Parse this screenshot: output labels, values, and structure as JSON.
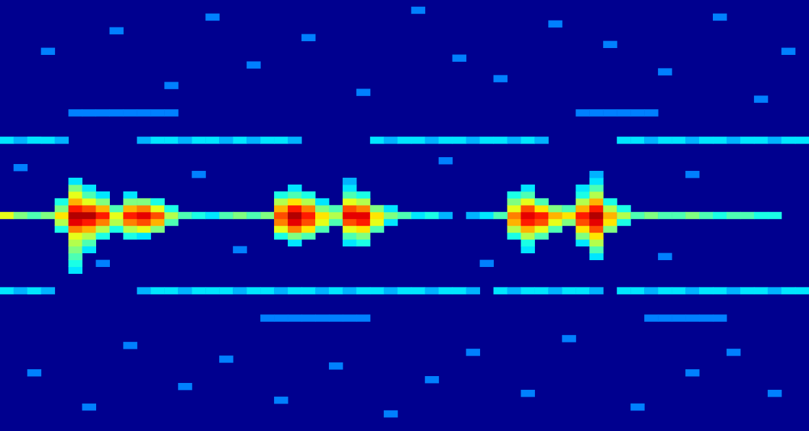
{
  "chart_data": {
    "type": "heatmap",
    "xlim": [
      0,
      58
    ],
    "ylim": [
      0,
      62
    ],
    "zlim": [
      0,
      1
    ],
    "tick_labels": false,
    "cells": [
      [
        4,
        29,
        0.4
      ],
      [
        4,
        30,
        0.55
      ],
      [
        4,
        31,
        0.65
      ],
      [
        4,
        32,
        0.5
      ],
      [
        4,
        33,
        0.4
      ],
      [
        5,
        23,
        0.35
      ],
      [
        5,
        24,
        0.4
      ],
      [
        5,
        25,
        0.45
      ],
      [
        5,
        26,
        0.5
      ],
      [
        5,
        27,
        0.55
      ],
      [
        5,
        28,
        0.6
      ],
      [
        5,
        29,
        0.75
      ],
      [
        5,
        30,
        0.9
      ],
      [
        5,
        31,
        0.95
      ],
      [
        5,
        32,
        0.85
      ],
      [
        5,
        33,
        0.7
      ],
      [
        5,
        34,
        0.6
      ],
      [
        5,
        35,
        0.5
      ],
      [
        5,
        36,
        0.35
      ],
      [
        6,
        26,
        0.35
      ],
      [
        6,
        27,
        0.45
      ],
      [
        6,
        28,
        0.55
      ],
      [
        6,
        29,
        0.7
      ],
      [
        6,
        30,
        0.85
      ],
      [
        6,
        31,
        0.95
      ],
      [
        6,
        32,
        0.8
      ],
      [
        6,
        33,
        0.6
      ],
      [
        6,
        34,
        0.45
      ],
      [
        6,
        35,
        0.35
      ],
      [
        7,
        28,
        0.4
      ],
      [
        7,
        29,
        0.55
      ],
      [
        7,
        30,
        0.75
      ],
      [
        7,
        31,
        0.85
      ],
      [
        7,
        32,
        0.7
      ],
      [
        7,
        33,
        0.5
      ],
      [
        7,
        34,
        0.35
      ],
      [
        8,
        29,
        0.4
      ],
      [
        8,
        30,
        0.55
      ],
      [
        8,
        31,
        0.6
      ],
      [
        8,
        32,
        0.45
      ],
      [
        9,
        28,
        0.4
      ],
      [
        9,
        29,
        0.55
      ],
      [
        9,
        30,
        0.75
      ],
      [
        9,
        31,
        0.85
      ],
      [
        9,
        32,
        0.7
      ],
      [
        9,
        33,
        0.5
      ],
      [
        9,
        34,
        0.35
      ],
      [
        10,
        28,
        0.35
      ],
      [
        10,
        29,
        0.6
      ],
      [
        10,
        30,
        0.8
      ],
      [
        10,
        31,
        0.9
      ],
      [
        10,
        32,
        0.75
      ],
      [
        10,
        33,
        0.5
      ],
      [
        11,
        29,
        0.5
      ],
      [
        11,
        30,
        0.7
      ],
      [
        11,
        31,
        0.8
      ],
      [
        11,
        32,
        0.6
      ],
      [
        11,
        33,
        0.4
      ],
      [
        12,
        30,
        0.45
      ],
      [
        12,
        31,
        0.55
      ],
      [
        12,
        32,
        0.4
      ],
      [
        13,
        31,
        0.45
      ],
      [
        19,
        31,
        0.5
      ],
      [
        20,
        28,
        0.4
      ],
      [
        20,
        29,
        0.6
      ],
      [
        20,
        30,
        0.75
      ],
      [
        20,
        31,
        0.8
      ],
      [
        20,
        32,
        0.7
      ],
      [
        20,
        33,
        0.55
      ],
      [
        20,
        34,
        0.4
      ],
      [
        21,
        27,
        0.35
      ],
      [
        21,
        28,
        0.5
      ],
      [
        21,
        29,
        0.75
      ],
      [
        21,
        30,
        0.9
      ],
      [
        21,
        31,
        0.95
      ],
      [
        21,
        32,
        0.85
      ],
      [
        21,
        33,
        0.65
      ],
      [
        21,
        34,
        0.45
      ],
      [
        21,
        35,
        0.35
      ],
      [
        22,
        28,
        0.45
      ],
      [
        22,
        29,
        0.65
      ],
      [
        22,
        30,
        0.8
      ],
      [
        22,
        31,
        0.85
      ],
      [
        22,
        32,
        0.75
      ],
      [
        22,
        33,
        0.55
      ],
      [
        22,
        34,
        0.4
      ],
      [
        23,
        29,
        0.45
      ],
      [
        23,
        30,
        0.6
      ],
      [
        23,
        31,
        0.65
      ],
      [
        23,
        32,
        0.5
      ],
      [
        23,
        33,
        0.35
      ],
      [
        24,
        30,
        0.45
      ],
      [
        24,
        31,
        0.55
      ],
      [
        24,
        32,
        0.45
      ],
      [
        25,
        27,
        0.35
      ],
      [
        25,
        28,
        0.45
      ],
      [
        25,
        29,
        0.6
      ],
      [
        25,
        30,
        0.8
      ],
      [
        25,
        31,
        0.9
      ],
      [
        25,
        32,
        0.8
      ],
      [
        25,
        33,
        0.6
      ],
      [
        25,
        34,
        0.45
      ],
      [
        25,
        35,
        0.35
      ],
      [
        25,
        36,
        0.3
      ],
      [
        26,
        27,
        0.4
      ],
      [
        26,
        28,
        0.5
      ],
      [
        26,
        29,
        0.65
      ],
      [
        26,
        30,
        0.85
      ],
      [
        26,
        31,
        0.9
      ],
      [
        26,
        32,
        0.75
      ],
      [
        26,
        33,
        0.55
      ],
      [
        26,
        34,
        0.4
      ],
      [
        27,
        29,
        0.45
      ],
      [
        27,
        30,
        0.6
      ],
      [
        27,
        31,
        0.65
      ],
      [
        27,
        32,
        0.5
      ],
      [
        28,
        30,
        0.35
      ],
      [
        28,
        31,
        0.5
      ],
      [
        28,
        32,
        0.35
      ],
      [
        29,
        31,
        0.45
      ],
      [
        37,
        28,
        0.4
      ],
      [
        37,
        29,
        0.55
      ],
      [
        37,
        30,
        0.7
      ],
      [
        37,
        31,
        0.75
      ],
      [
        37,
        32,
        0.6
      ],
      [
        37,
        33,
        0.5
      ],
      [
        37,
        34,
        0.4
      ],
      [
        38,
        26,
        0.35
      ],
      [
        38,
        27,
        0.4
      ],
      [
        38,
        28,
        0.55
      ],
      [
        38,
        29,
        0.7
      ],
      [
        38,
        30,
        0.85
      ],
      [
        38,
        31,
        0.9
      ],
      [
        38,
        32,
        0.8
      ],
      [
        38,
        33,
        0.6
      ],
      [
        38,
        34,
        0.45
      ],
      [
        38,
        35,
        0.35
      ],
      [
        39,
        28,
        0.45
      ],
      [
        39,
        29,
        0.6
      ],
      [
        39,
        30,
        0.8
      ],
      [
        39,
        31,
        0.85
      ],
      [
        39,
        32,
        0.65
      ],
      [
        39,
        33,
        0.45
      ],
      [
        40,
        29,
        0.45
      ],
      [
        40,
        30,
        0.6
      ],
      [
        40,
        31,
        0.7
      ],
      [
        40,
        32,
        0.5
      ],
      [
        41,
        30,
        0.5
      ],
      [
        41,
        31,
        0.65
      ],
      [
        41,
        32,
        0.45
      ],
      [
        42,
        27,
        0.35
      ],
      [
        42,
        28,
        0.5
      ],
      [
        42,
        29,
        0.65
      ],
      [
        42,
        30,
        0.8
      ],
      [
        42,
        31,
        0.85
      ],
      [
        42,
        32,
        0.7
      ],
      [
        42,
        33,
        0.55
      ],
      [
        42,
        34,
        0.4
      ],
      [
        42,
        35,
        0.35
      ],
      [
        43,
        25,
        0.35
      ],
      [
        43,
        26,
        0.45
      ],
      [
        43,
        27,
        0.55
      ],
      [
        43,
        28,
        0.65
      ],
      [
        43,
        29,
        0.8
      ],
      [
        43,
        30,
        0.9
      ],
      [
        43,
        31,
        0.95
      ],
      [
        43,
        32,
        0.85
      ],
      [
        43,
        33,
        0.7
      ],
      [
        43,
        34,
        0.55
      ],
      [
        43,
        35,
        0.45
      ],
      [
        43,
        36,
        0.35
      ],
      [
        43,
        37,
        0.3
      ],
      [
        44,
        29,
        0.5
      ],
      [
        44,
        30,
        0.65
      ],
      [
        44,
        31,
        0.7
      ],
      [
        44,
        32,
        0.55
      ],
      [
        44,
        33,
        0.4
      ],
      [
        45,
        30,
        0.4
      ],
      [
        45,
        31,
        0.55
      ],
      [
        45,
        32,
        0.4
      ],
      [
        0,
        31,
        0.6
      ],
      [
        1,
        31,
        0.5
      ],
      [
        2,
        31,
        0.45
      ],
      [
        3,
        31,
        0.5
      ],
      [
        14,
        31,
        0.4
      ],
      [
        15,
        31,
        0.35
      ],
      [
        16,
        31,
        0.45
      ],
      [
        17,
        31,
        0.5
      ],
      [
        18,
        31,
        0.45
      ],
      [
        30,
        31,
        0.35
      ],
      [
        31,
        31,
        0.4
      ],
      [
        32,
        31,
        0.3
      ],
      [
        34,
        31,
        0.3
      ],
      [
        35,
        31,
        0.35
      ],
      [
        36,
        31,
        0.45
      ],
      [
        46,
        31,
        0.45
      ],
      [
        47,
        31,
        0.5
      ],
      [
        48,
        31,
        0.45
      ],
      [
        49,
        31,
        0.45
      ],
      [
        50,
        31,
        0.5
      ],
      [
        51,
        31,
        0.45
      ],
      [
        52,
        31,
        0.4
      ],
      [
        53,
        31,
        0.45
      ],
      [
        54,
        31,
        0.45
      ],
      [
        55,
        31,
        0.4
      ],
      [
        56,
        31,
        0.4
      ],
      [
        0,
        42,
        0.35
      ],
      [
        1,
        42,
        0.3
      ],
      [
        2,
        42,
        0.35
      ],
      [
        3,
        42,
        0.35
      ],
      [
        4,
        42,
        0.3
      ],
      [
        10,
        42,
        0.3
      ],
      [
        11,
        42,
        0.35
      ],
      [
        12,
        42,
        0.35
      ],
      [
        13,
        42,
        0.3
      ],
      [
        14,
        42,
        0.35
      ],
      [
        15,
        42,
        0.35
      ],
      [
        16,
        42,
        0.3
      ],
      [
        17,
        42,
        0.35
      ],
      [
        18,
        42,
        0.3
      ],
      [
        19,
        42,
        0.35
      ],
      [
        20,
        42,
        0.35
      ],
      [
        21,
        42,
        0.3
      ],
      [
        27,
        42,
        0.35
      ],
      [
        28,
        42,
        0.3
      ],
      [
        29,
        42,
        0.35
      ],
      [
        30,
        42,
        0.35
      ],
      [
        31,
        42,
        0.3
      ],
      [
        32,
        42,
        0.35
      ],
      [
        33,
        42,
        0.35
      ],
      [
        34,
        42,
        0.3
      ],
      [
        35,
        42,
        0.35
      ],
      [
        36,
        42,
        0.35
      ],
      [
        37,
        42,
        0.3
      ],
      [
        38,
        42,
        0.35
      ],
      [
        39,
        42,
        0.3
      ],
      [
        45,
        42,
        0.35
      ],
      [
        46,
        42,
        0.35
      ],
      [
        47,
        42,
        0.3
      ],
      [
        48,
        42,
        0.35
      ],
      [
        49,
        42,
        0.35
      ],
      [
        50,
        42,
        0.3
      ],
      [
        51,
        42,
        0.35
      ],
      [
        52,
        42,
        0.35
      ],
      [
        53,
        42,
        0.3
      ],
      [
        54,
        42,
        0.35
      ],
      [
        55,
        42,
        0.35
      ],
      [
        56,
        42,
        0.3
      ],
      [
        57,
        42,
        0.35
      ],
      [
        58,
        42,
        0.35
      ],
      [
        0,
        20,
        0.35
      ],
      [
        1,
        20,
        0.3
      ],
      [
        2,
        20,
        0.35
      ],
      [
        3,
        20,
        0.3
      ],
      [
        10,
        20,
        0.3
      ],
      [
        11,
        20,
        0.35
      ],
      [
        12,
        20,
        0.35
      ],
      [
        13,
        20,
        0.3
      ],
      [
        14,
        20,
        0.35
      ],
      [
        15,
        20,
        0.35
      ],
      [
        16,
        20,
        0.35
      ],
      [
        17,
        20,
        0.3
      ],
      [
        18,
        20,
        0.35
      ],
      [
        19,
        20,
        0.35
      ],
      [
        20,
        20,
        0.3
      ],
      [
        21,
        20,
        0.35
      ],
      [
        22,
        20,
        0.35
      ],
      [
        23,
        20,
        0.3
      ],
      [
        24,
        20,
        0.35
      ],
      [
        25,
        20,
        0.3
      ],
      [
        26,
        20,
        0.35
      ],
      [
        27,
        20,
        0.35
      ],
      [
        28,
        20,
        0.3
      ],
      [
        29,
        20,
        0.35
      ],
      [
        30,
        20,
        0.35
      ],
      [
        31,
        20,
        0.3
      ],
      [
        32,
        20,
        0.35
      ],
      [
        33,
        20,
        0.35
      ],
      [
        34,
        20,
        0.3
      ],
      [
        36,
        20,
        0.35
      ],
      [
        37,
        20,
        0.3
      ],
      [
        38,
        20,
        0.35
      ],
      [
        39,
        20,
        0.35
      ],
      [
        40,
        20,
        0.3
      ],
      [
        41,
        20,
        0.35
      ],
      [
        42,
        20,
        0.35
      ],
      [
        43,
        20,
        0.3
      ],
      [
        45,
        20,
        0.35
      ],
      [
        46,
        20,
        0.35
      ],
      [
        47,
        20,
        0.3
      ],
      [
        48,
        20,
        0.35
      ],
      [
        49,
        20,
        0.35
      ],
      [
        50,
        20,
        0.3
      ],
      [
        51,
        20,
        0.35
      ],
      [
        52,
        20,
        0.35
      ],
      [
        53,
        20,
        0.3
      ],
      [
        54,
        20,
        0.35
      ],
      [
        55,
        20,
        0.35
      ],
      [
        56,
        20,
        0.3
      ],
      [
        57,
        20,
        0.35
      ],
      [
        58,
        20,
        0.35
      ],
      [
        5,
        46,
        0.25
      ],
      [
        6,
        46,
        0.25
      ],
      [
        7,
        46,
        0.25
      ],
      [
        8,
        46,
        0.25
      ],
      [
        9,
        46,
        0.25
      ],
      [
        10,
        46,
        0.25
      ],
      [
        11,
        46,
        0.25
      ],
      [
        12,
        46,
        0.25
      ],
      [
        42,
        46,
        0.25
      ],
      [
        43,
        46,
        0.25
      ],
      [
        44,
        46,
        0.25
      ],
      [
        45,
        46,
        0.25
      ],
      [
        46,
        46,
        0.25
      ],
      [
        47,
        46,
        0.25
      ],
      [
        19,
        16,
        0.25
      ],
      [
        20,
        16,
        0.25
      ],
      [
        21,
        16,
        0.25
      ],
      [
        22,
        16,
        0.25
      ],
      [
        23,
        16,
        0.25
      ],
      [
        24,
        16,
        0.25
      ],
      [
        25,
        16,
        0.25
      ],
      [
        26,
        16,
        0.25
      ],
      [
        47,
        16,
        0.25
      ],
      [
        48,
        16,
        0.25
      ],
      [
        49,
        16,
        0.25
      ],
      [
        50,
        16,
        0.25
      ],
      [
        51,
        16,
        0.25
      ],
      [
        52,
        16,
        0.25
      ],
      [
        3,
        55,
        0.25
      ],
      [
        8,
        58,
        0.25
      ],
      [
        12,
        50,
        0.25
      ],
      [
        15,
        60,
        0.25
      ],
      [
        18,
        53,
        0.25
      ],
      [
        22,
        57,
        0.25
      ],
      [
        26,
        49,
        0.25
      ],
      [
        30,
        61,
        0.25
      ],
      [
        33,
        54,
        0.25
      ],
      [
        36,
        51,
        0.25
      ],
      [
        40,
        59,
        0.25
      ],
      [
        44,
        56,
        0.25
      ],
      [
        48,
        52,
        0.25
      ],
      [
        52,
        60,
        0.25
      ],
      [
        55,
        48,
        0.25
      ],
      [
        57,
        55,
        0.25
      ],
      [
        2,
        8,
        0.25
      ],
      [
        6,
        3,
        0.25
      ],
      [
        9,
        12,
        0.25
      ],
      [
        13,
        6,
        0.25
      ],
      [
        16,
        10,
        0.25
      ],
      [
        20,
        4,
        0.25
      ],
      [
        24,
        9,
        0.25
      ],
      [
        28,
        2,
        0.25
      ],
      [
        31,
        7,
        0.25
      ],
      [
        34,
        11,
        0.25
      ],
      [
        38,
        5,
        0.25
      ],
      [
        41,
        13,
        0.25
      ],
      [
        46,
        3,
        0.25
      ],
      [
        50,
        8,
        0.25
      ],
      [
        53,
        11,
        0.25
      ],
      [
        56,
        5,
        0.25
      ],
      [
        1,
        38,
        0.25
      ],
      [
        14,
        37,
        0.25
      ],
      [
        32,
        39,
        0.25
      ],
      [
        50,
        37,
        0.25
      ],
      [
        7,
        24,
        0.25
      ],
      [
        17,
        26,
        0.25
      ],
      [
        35,
        24,
        0.25
      ],
      [
        48,
        25,
        0.25
      ]
    ]
  }
}
